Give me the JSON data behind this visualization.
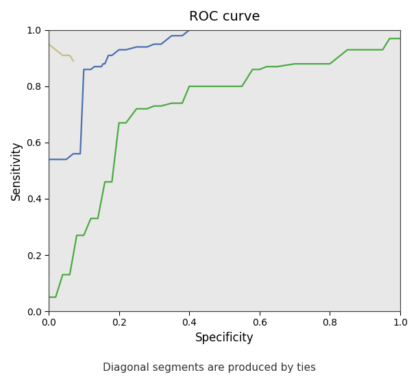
{
  "title": "ROC curve",
  "xlabel": "Specificity",
  "ylabel": "Sensitivity",
  "footnote": "Diagonal segments are produced by ties",
  "background_color": "#e8e8e8",
  "figure_background": "#ffffff",
  "blue_curve": {
    "color": "#4a6faf",
    "x": [
      0.0,
      0.0,
      0.05,
      0.07,
      0.09,
      0.1,
      0.12,
      0.13,
      0.15,
      0.155,
      0.16,
      0.17,
      0.18,
      0.2,
      0.22,
      0.25,
      0.28,
      0.3,
      0.32,
      0.35,
      0.38,
      0.4,
      1.0
    ],
    "y": [
      0.13,
      0.54,
      0.54,
      0.56,
      0.56,
      0.86,
      0.86,
      0.87,
      0.87,
      0.88,
      0.88,
      0.91,
      0.91,
      0.93,
      0.93,
      0.94,
      0.94,
      0.95,
      0.95,
      0.98,
      0.98,
      1.0,
      1.0
    ]
  },
  "green_curve": {
    "color": "#4aaa40",
    "x": [
      0.0,
      0.0,
      0.02,
      0.04,
      0.06,
      0.08,
      0.1,
      0.12,
      0.14,
      0.16,
      0.18,
      0.2,
      0.22,
      0.25,
      0.28,
      0.3,
      0.32,
      0.35,
      0.38,
      0.4,
      0.43,
      0.5,
      0.55,
      0.58,
      0.6,
      0.62,
      0.65,
      0.7,
      0.8,
      0.85,
      0.9,
      0.95,
      0.97,
      1.0
    ],
    "y": [
      0.0,
      0.05,
      0.05,
      0.13,
      0.13,
      0.27,
      0.27,
      0.33,
      0.33,
      0.46,
      0.46,
      0.67,
      0.67,
      0.72,
      0.72,
      0.73,
      0.73,
      0.74,
      0.74,
      0.8,
      0.8,
      0.8,
      0.8,
      0.86,
      0.86,
      0.87,
      0.87,
      0.88,
      0.88,
      0.93,
      0.93,
      0.93,
      0.97,
      0.97
    ]
  },
  "diagonal_color": "#c8be82",
  "diagonal_x": [
    0.0,
    0.0,
    0.02,
    0.04,
    0.06,
    0.07
  ],
  "diagonal_y": [
    1.0,
    0.95,
    0.93,
    0.91,
    0.91,
    0.89
  ],
  "xlim": [
    0.0,
    1.0
  ],
  "ylim": [
    0.0,
    1.0
  ],
  "xticks": [
    0.0,
    0.2,
    0.4,
    0.6,
    0.8,
    1.0
  ],
  "yticks": [
    0.0,
    0.2,
    0.4,
    0.6,
    0.8,
    1.0
  ],
  "linewidth": 1.6,
  "title_fontsize": 14,
  "label_fontsize": 12,
  "tick_fontsize": 10,
  "footnote_fontsize": 11
}
